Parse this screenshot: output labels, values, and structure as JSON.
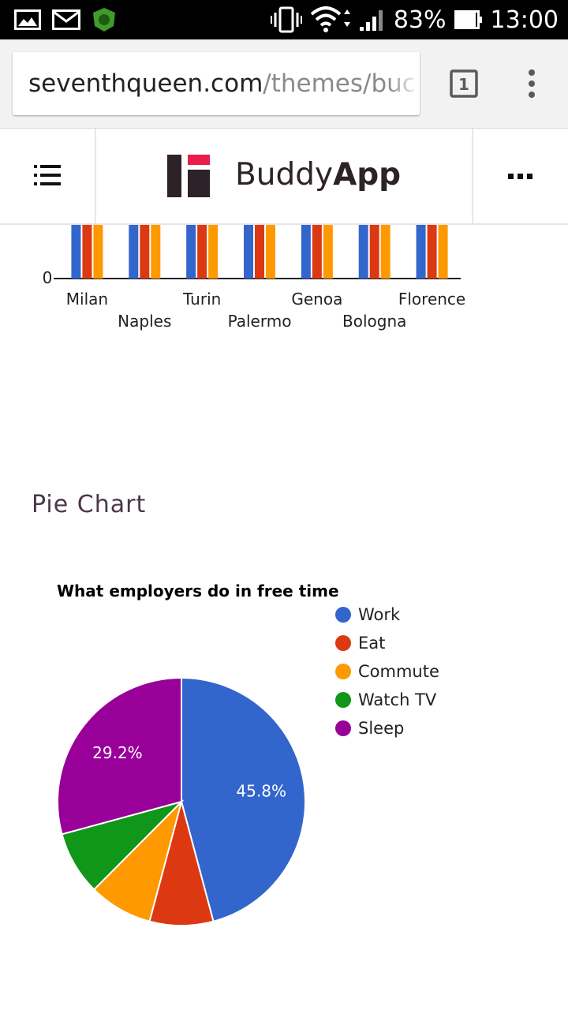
{
  "status_bar": {
    "battery": "83%",
    "time": "13:00",
    "icons": [
      "picture-icon",
      "mail-icon",
      "lion-shield-icon",
      "vibrate-icon",
      "wifi-icon",
      "signal-icon",
      "battery-icon"
    ]
  },
  "browser": {
    "url_host": "seventhqueen.com",
    "url_path": "/themes/buc",
    "tab_count": "1"
  },
  "app": {
    "brand_light": "Buddy",
    "brand_bold": "App",
    "colors": {
      "accent": "#e91e4a",
      "brand_dark": "#2d2228",
      "title": "#4b3848"
    }
  },
  "bar_chart": {
    "type": "bar",
    "categories": [
      "Milan",
      "Naples",
      "Turin",
      "Palermo",
      "Genoa",
      "Bologna",
      "Florence"
    ],
    "series_colors": [
      "#3366cc",
      "#dc3912",
      "#ff9900"
    ],
    "y_tick": "0"
  },
  "pie_section": {
    "heading": "Pie Chart"
  },
  "chart_data": {
    "type": "pie",
    "title": "What employers do in free time",
    "legend_position": "right",
    "slices": [
      {
        "label": "Work",
        "value": 45.8,
        "color": "#3366cc",
        "data_label": "45.8%"
      },
      {
        "label": "Eat",
        "value": 8.3,
        "color": "#dc3912",
        "data_label": ""
      },
      {
        "label": "Commute",
        "value": 8.3,
        "color": "#ff9900",
        "data_label": ""
      },
      {
        "label": "Watch TV",
        "value": 8.3,
        "color": "#109618",
        "data_label": ""
      },
      {
        "label": "Sleep",
        "value": 29.2,
        "color": "#990099",
        "data_label": "29.2%"
      }
    ]
  }
}
